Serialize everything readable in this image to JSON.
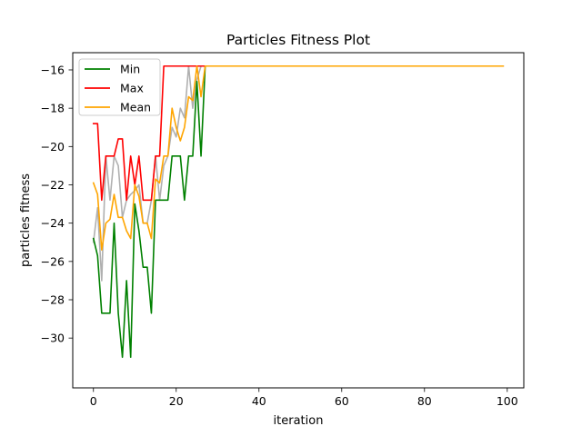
{
  "chart_data": {
    "type": "line",
    "title": "Particles Fitness Plot",
    "xlabel": "iteration",
    "ylabel": "particles fitness",
    "xlim": [
      -5,
      104
    ],
    "ylim": [
      -32.6,
      -15.1
    ],
    "xticks": [
      0,
      20,
      40,
      60,
      80,
      100
    ],
    "xtick_labels": [
      "0",
      "20",
      "40",
      "60",
      "80",
      "100"
    ],
    "yticks": [
      -30,
      -28,
      -26,
      -24,
      -22,
      -20,
      -18,
      -16
    ],
    "ytick_labels": [
      "−30",
      "−28",
      "−26",
      "−24",
      "−22",
      "−20",
      "−18",
      "−16"
    ],
    "grid": false,
    "legend_position": "top-left",
    "series": [
      {
        "name": "Min",
        "color": "#008000",
        "x": [
          0,
          1,
          2,
          3,
          4,
          5,
          6,
          7,
          8,
          9,
          10,
          11,
          12,
          13,
          14,
          15,
          16,
          17,
          18,
          19,
          20,
          21,
          22,
          23,
          24,
          25,
          26,
          27,
          99
        ],
        "values": [
          -24.8,
          -25.7,
          -28.7,
          -28.7,
          -28.7,
          -24.0,
          -28.7,
          -31.0,
          -27.0,
          -31.0,
          -23.0,
          -24.4,
          -26.3,
          -26.3,
          -28.7,
          -22.8,
          -22.8,
          -22.8,
          -22.8,
          -20.5,
          -20.5,
          -20.5,
          -22.8,
          -20.5,
          -20.5,
          -16.6,
          -20.5,
          -15.8,
          -15.8
        ]
      },
      {
        "name": "Max",
        "color": "#ff0000",
        "x": [
          0,
          1,
          2,
          3,
          4,
          5,
          6,
          7,
          8,
          9,
          10,
          11,
          12,
          13,
          14,
          15,
          16,
          17,
          18,
          19,
          20,
          21,
          22,
          23,
          24,
          25,
          26,
          27,
          99
        ],
        "values": [
          -18.8,
          -18.8,
          -22.8,
          -20.5,
          -20.5,
          -20.5,
          -19.6,
          -19.6,
          -22.8,
          -20.5,
          -22.0,
          -20.5,
          -22.8,
          -22.8,
          -22.8,
          -20.5,
          -20.5,
          -15.8,
          -15.8,
          -15.8,
          -15.8,
          -15.8,
          -15.8,
          -15.8,
          -15.8,
          -15.8,
          -15.8,
          -15.8,
          -15.8
        ]
      },
      {
        "name": "Mean",
        "color": "#ffa500",
        "x": [
          0,
          1,
          2,
          3,
          4,
          5,
          6,
          7,
          8,
          9,
          10,
          11,
          12,
          13,
          14,
          15,
          16,
          17,
          18,
          19,
          20,
          21,
          22,
          23,
          24,
          25,
          26,
          27,
          99
        ],
        "values": [
          -21.9,
          -22.5,
          -25.4,
          -24.0,
          -23.8,
          -22.5,
          -23.7,
          -23.7,
          -24.4,
          -24.8,
          -22.0,
          -22.6,
          -24.0,
          -24.0,
          -24.8,
          -21.7,
          -21.9,
          -20.5,
          -20.5,
          -18.0,
          -19.0,
          -19.7,
          -19.0,
          -17.4,
          -17.6,
          -15.8,
          -17.4,
          -15.8,
          -15.8
        ]
      },
      {
        "color": "#b0b0b0",
        "x": [
          0,
          1,
          2,
          3,
          4,
          5,
          6,
          7,
          8,
          9,
          10,
          11,
          12,
          13,
          14,
          15,
          16,
          17,
          18,
          19,
          20,
          21,
          22,
          23,
          24,
          25,
          26,
          27,
          99
        ],
        "values": [
          -25.0,
          -23.2,
          -27.0,
          -20.5,
          -22.8,
          -20.5,
          -21.0,
          -23.7,
          -22.8,
          -22.5,
          -22.3,
          -22.0,
          -24.0,
          -24.0,
          -22.8,
          -20.5,
          -22.8,
          -21.0,
          -20.5,
          -19.0,
          -19.5,
          -18.0,
          -18.5,
          -15.8,
          -18.0,
          -16.5,
          -15.8,
          -15.8,
          -15.8
        ]
      }
    ]
  }
}
